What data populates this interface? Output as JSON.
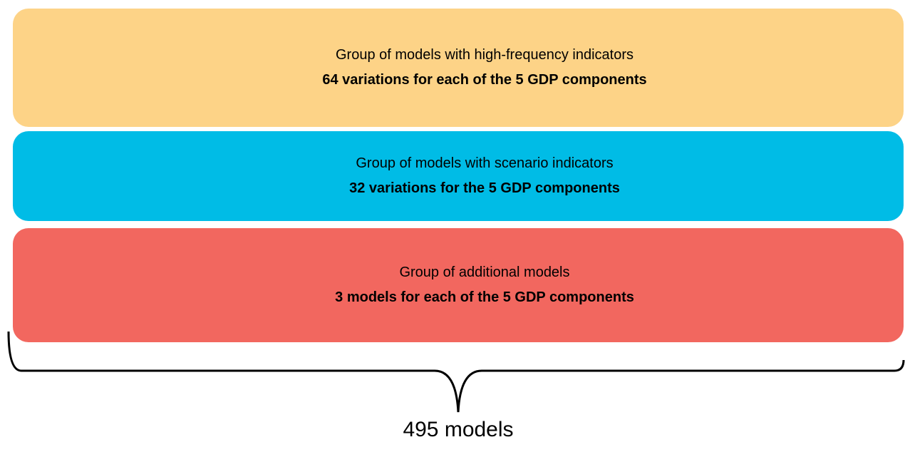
{
  "boxes": [
    {
      "label": "Group of models with high-frequency indicators",
      "detail": "64 variations for each of the 5 GDP components"
    },
    {
      "label": "Group of models with scenario indicators",
      "detail": "32 variations for the 5 GDP components"
    },
    {
      "label": "Group of additional models",
      "detail": "3 models for each of the 5 GDP components"
    }
  ],
  "total": "495 models"
}
